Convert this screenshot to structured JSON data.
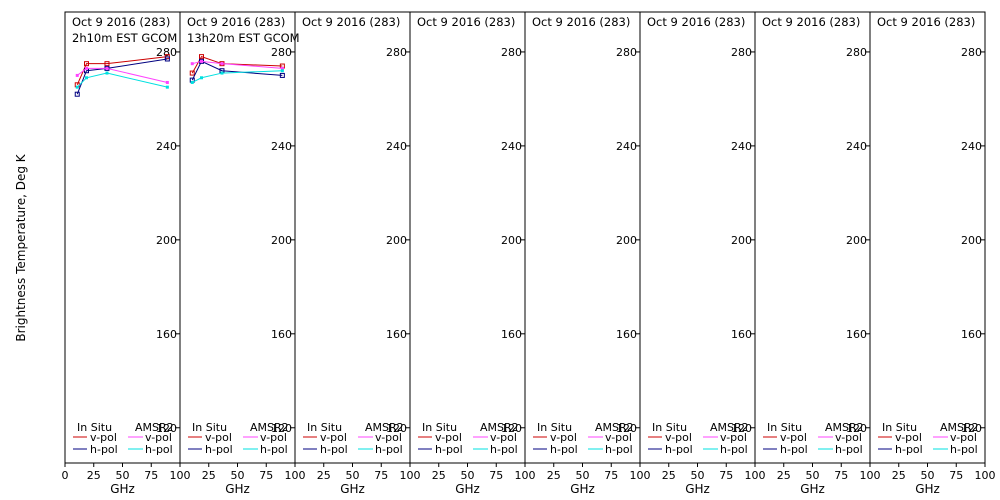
{
  "ylabel": "Brightness Temperature, Deg K",
  "chart_data": [
    {
      "type": "line",
      "title": "Oct 9 2016 (283)",
      "subtitle": "2h10m EST GCOM",
      "xlabel": "GHz",
      "xlim": [
        0,
        100
      ],
      "ylim": [
        105,
        297
      ],
      "xticks": [
        0,
        25,
        50,
        75,
        100
      ],
      "yticks": [
        120,
        160,
        200,
        240,
        280
      ],
      "series": [
        {
          "name": "v-pol",
          "group": "In Situ",
          "color": "#cc0000",
          "marker": "square",
          "x": [
            10.65,
            18.7,
            36.5,
            89
          ],
          "y": [
            266,
            275,
            275,
            278
          ]
        },
        {
          "name": "h-pol",
          "group": "In Situ",
          "color": "#000080",
          "marker": "square",
          "x": [
            10.65,
            18.7,
            36.5,
            89
          ],
          "y": [
            262,
            272,
            273,
            277
          ]
        },
        {
          "name": "v-pol",
          "group": "AMSR2",
          "color": "#ff44ff",
          "marker": "dot",
          "x": [
            10.65,
            18.7,
            36.5,
            89
          ],
          "y": [
            270,
            273,
            273,
            267
          ]
        },
        {
          "name": "h-pol",
          "group": "AMSR2",
          "color": "#00e0e0",
          "marker": "dot",
          "x": [
            10.65,
            18.7,
            36.5,
            89
          ],
          "y": [
            265,
            269,
            271,
            265
          ]
        }
      ],
      "legend": {
        "left_title": "In Situ",
        "right_title": "AMSR2",
        "v_label": "v-pol",
        "h_label": "h-pol"
      }
    },
    {
      "type": "line",
      "title": "Oct 9 2016 (283)",
      "subtitle": "13h20m EST GCOM",
      "xlabel": "GHz",
      "xlim": [
        0,
        100
      ],
      "ylim": [
        105,
        297
      ],
      "xticks": [
        0,
        25,
        50,
        75,
        100
      ],
      "yticks": [
        120,
        160,
        200,
        240,
        280
      ],
      "series": [
        {
          "name": "v-pol",
          "group": "In Situ",
          "color": "#cc0000",
          "marker": "square",
          "x": [
            10.65,
            18.7,
            36.5,
            89
          ],
          "y": [
            271,
            278,
            275,
            274
          ]
        },
        {
          "name": "h-pol",
          "group": "In Situ",
          "color": "#000080",
          "marker": "square",
          "x": [
            10.65,
            18.7,
            36.5,
            89
          ],
          "y": [
            268,
            276,
            272,
            270
          ]
        },
        {
          "name": "v-pol",
          "group": "AMSR2",
          "color": "#ff44ff",
          "marker": "dot",
          "x": [
            10.65,
            18.7,
            36.5,
            89
          ],
          "y": [
            275,
            276,
            275,
            273
          ]
        },
        {
          "name": "h-pol",
          "group": "AMSR2",
          "color": "#00e0e0",
          "marker": "dot",
          "x": [
            10.65,
            18.7,
            36.5,
            89
          ],
          "y": [
            267,
            269,
            271,
            272
          ]
        }
      ],
      "legend": {
        "left_title": "In Situ",
        "right_title": "AMSR2",
        "v_label": "v-pol",
        "h_label": "h-pol"
      }
    },
    {
      "type": "line",
      "title": "Oct 9 2016 (283)",
      "subtitle": "",
      "xlabel": "GHz",
      "xlim": [
        0,
        100
      ],
      "ylim": [
        105,
        297
      ],
      "xticks": [
        0,
        25,
        50,
        75,
        100
      ],
      "yticks": [
        120,
        160,
        200,
        240,
        280
      ],
      "series": [],
      "legend": {
        "left_title": "In Situ",
        "right_title": "AMSR2",
        "v_label": "v-pol",
        "h_label": "h-pol"
      }
    },
    {
      "type": "line",
      "title": "Oct 9 2016 (283)",
      "subtitle": "",
      "xlabel": "GHz",
      "xlim": [
        0,
        100
      ],
      "ylim": [
        105,
        297
      ],
      "xticks": [
        0,
        25,
        50,
        75,
        100
      ],
      "yticks": [
        120,
        160,
        200,
        240,
        280
      ],
      "series": [],
      "legend": {
        "left_title": "In Situ",
        "right_title": "AMSR2",
        "v_label": "v-pol",
        "h_label": "h-pol"
      }
    },
    {
      "type": "line",
      "title": "Oct 9 2016 (283)",
      "subtitle": "",
      "xlabel": "GHz",
      "xlim": [
        0,
        100
      ],
      "ylim": [
        105,
        297
      ],
      "xticks": [
        0,
        25,
        50,
        75,
        100
      ],
      "yticks": [
        120,
        160,
        200,
        240,
        280
      ],
      "series": [],
      "legend": {
        "left_title": "In Situ",
        "right_title": "AMSR2",
        "v_label": "v-pol",
        "h_label": "h-pol"
      }
    },
    {
      "type": "line",
      "title": "Oct 9 2016 (283)",
      "subtitle": "",
      "xlabel": "GHz",
      "xlim": [
        0,
        100
      ],
      "ylim": [
        105,
        297
      ],
      "xticks": [
        0,
        25,
        50,
        75,
        100
      ],
      "yticks": [
        120,
        160,
        200,
        240,
        280
      ],
      "series": [],
      "legend": {
        "left_title": "In Situ",
        "right_title": "AMSR2",
        "v_label": "v-pol",
        "h_label": "h-pol"
      }
    },
    {
      "type": "line",
      "title": "Oct 9 2016 (283)",
      "subtitle": "",
      "xlabel": "GHz",
      "xlim": [
        0,
        100
      ],
      "ylim": [
        105,
        297
      ],
      "xticks": [
        0,
        25,
        50,
        75,
        100
      ],
      "yticks": [
        120,
        160,
        200,
        240,
        280
      ],
      "series": [],
      "legend": {
        "left_title": "In Situ",
        "right_title": "AMSR2",
        "v_label": "v-pol",
        "h_label": "h-pol"
      }
    },
    {
      "type": "line",
      "title": "Oct 9 2016 (283)",
      "subtitle": "",
      "xlabel": "GHz",
      "xlim": [
        0,
        100
      ],
      "ylim": [
        105,
        297
      ],
      "xticks": [
        0,
        25,
        50,
        75,
        100
      ],
      "yticks": [
        120,
        160,
        200,
        240,
        280
      ],
      "series": [],
      "legend": {
        "left_title": "In Situ",
        "right_title": "AMSR2",
        "v_label": "v-pol",
        "h_label": "h-pol"
      }
    }
  ]
}
